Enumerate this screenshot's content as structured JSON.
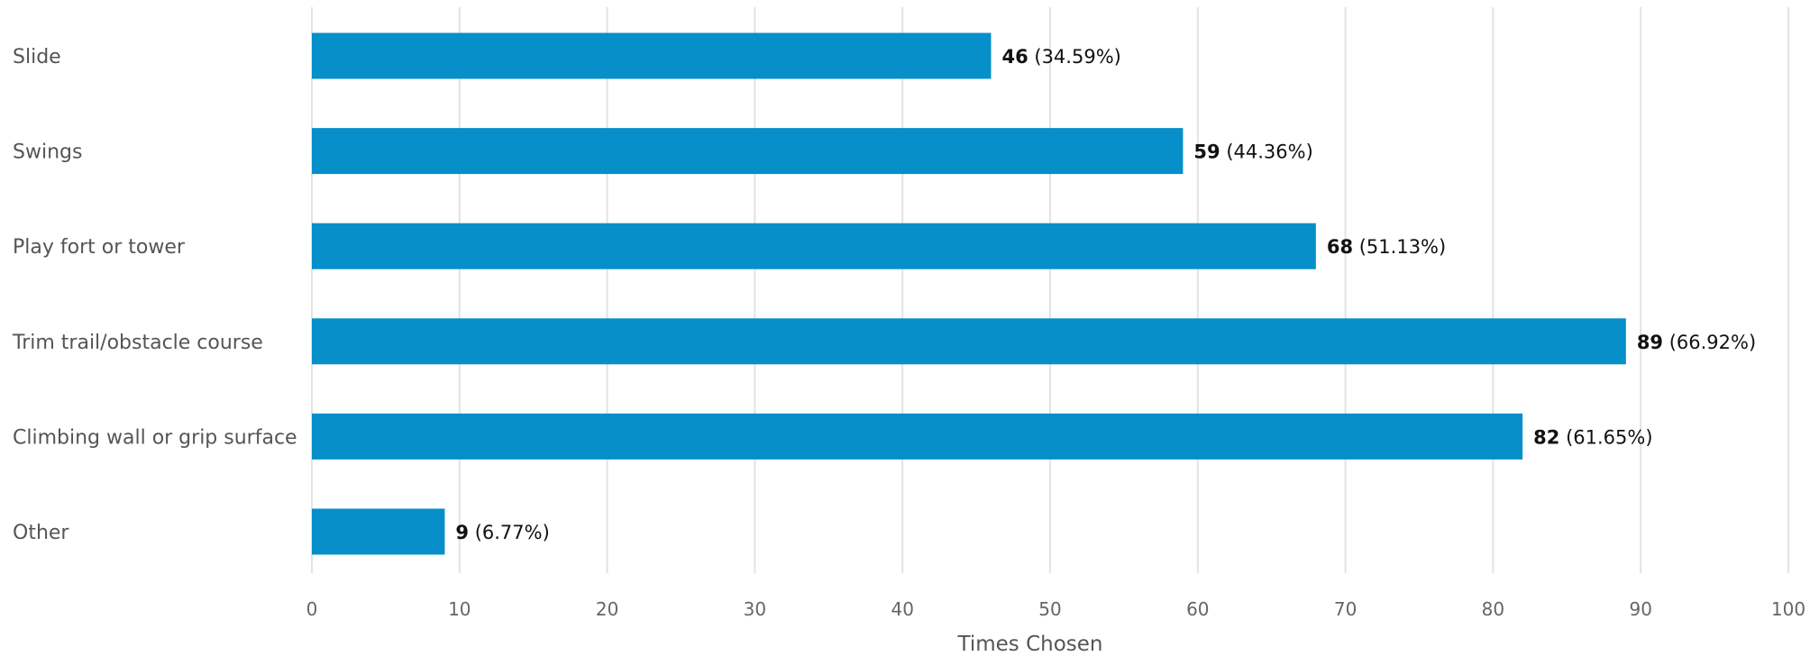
{
  "chart_data": {
    "type": "bar",
    "orientation": "horizontal",
    "categories": [
      "Slide",
      "Swings",
      "Play fort or tower",
      "Trim trail/obstacle course",
      "Climbing wall or grip surface",
      "Other"
    ],
    "values": [
      46,
      59,
      68,
      89,
      82,
      9
    ],
    "percent_labels": [
      "(34.59%)",
      "(44.36%)",
      "(51.13%)",
      "(66.92%)",
      "(61.65%)",
      "(6.77%)"
    ],
    "xlabel": "Times Chosen",
    "ylabel": "",
    "xlim": [
      0,
      100
    ],
    "x_ticks": [
      0,
      10,
      20,
      30,
      40,
      50,
      60,
      70,
      80,
      90,
      100
    ],
    "grid": "vertical",
    "legend": "none",
    "bar_color": "#068fc8"
  }
}
